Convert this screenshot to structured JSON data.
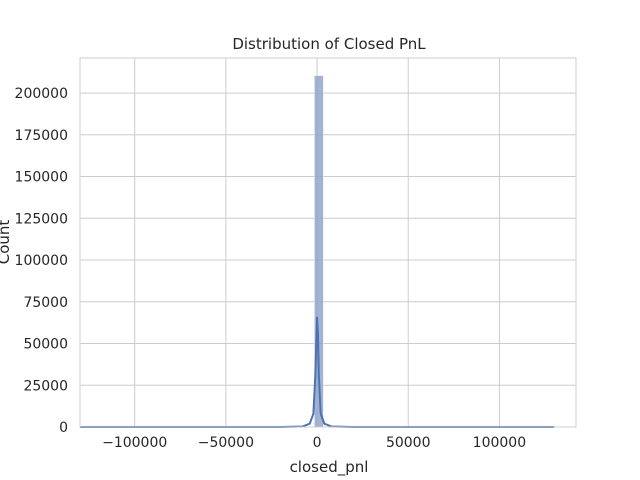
{
  "chart_data": {
    "type": "bar",
    "title": "Distribution of Closed PnL",
    "xlabel": "closed_pnl",
    "ylabel": "Count",
    "xlim": [
      -130000,
      142000
    ],
    "ylim": [
      0,
      221000
    ],
    "xticks": [
      -100000,
      -50000,
      0,
      50000,
      100000
    ],
    "xtick_labels": [
      "−100000",
      "−50000",
      "0",
      "50000",
      "100000"
    ],
    "yticks": [
      0,
      25000,
      50000,
      75000,
      100000,
      125000,
      150000,
      175000,
      200000
    ],
    "ytick_labels": [
      "0",
      "25000",
      "50000",
      "75000",
      "100000",
      "125000",
      "150000",
      "175000",
      "200000"
    ],
    "grid": true,
    "bars": [
      {
        "x0": -1500,
        "x1": 3500,
        "count": 210500
      }
    ],
    "kde": {
      "x": [
        -130000,
        -20000,
        -8000,
        -4000,
        -2000,
        -1000,
        0,
        500,
        1000,
        2000,
        4000,
        8000,
        20000,
        130000
      ],
      "y": [
        0,
        0,
        300,
        2000,
        8000,
        30000,
        65500,
        55000,
        30000,
        8000,
        2000,
        300,
        0,
        0
      ]
    },
    "colors": {
      "bar": "#8da0cb",
      "kde": "#4c72b0",
      "grid": "#cccccc",
      "spine": "#cccccc"
    }
  }
}
